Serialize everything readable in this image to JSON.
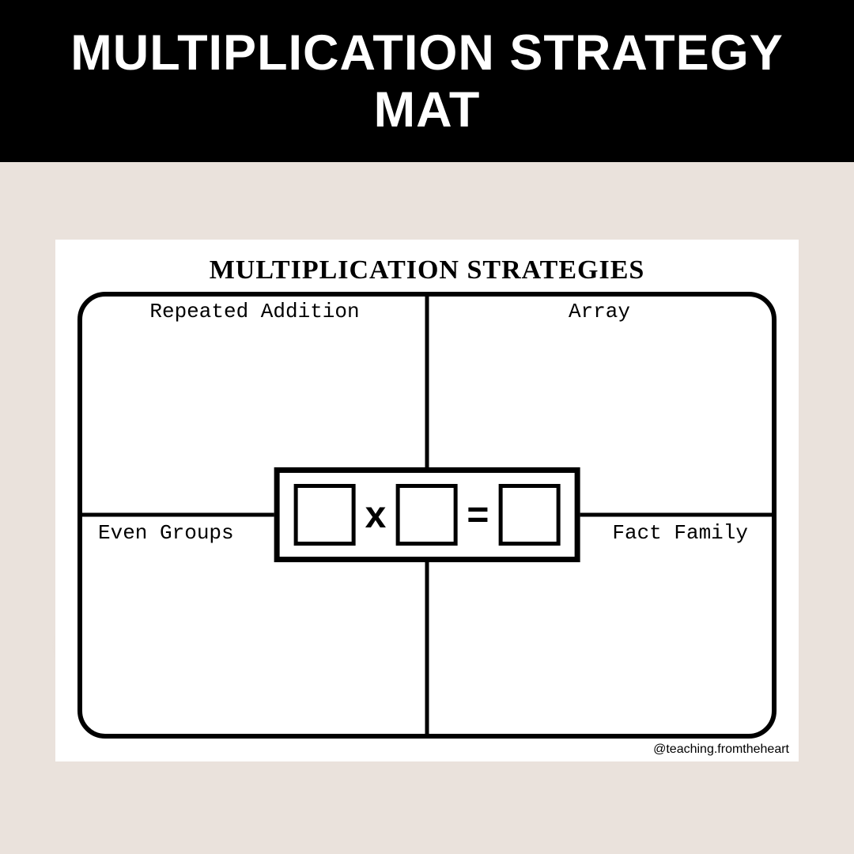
{
  "header": {
    "title": "MULTIPLICATION STRATEGY MAT",
    "background_color": "#000000",
    "text_color": "#ffffff",
    "title_fontsize": 63
  },
  "content_background_color": "#eae2dc",
  "worksheet": {
    "background_color": "#ffffff",
    "title": "MULTIPLICATION STRATEGIES",
    "title_fontsize": 34,
    "grid": {
      "border_color": "#000000",
      "border_width": 6,
      "border_radius": 35,
      "divider_width": 5,
      "quadrants": {
        "top_left": "Repeated Addition",
        "top_right": "Array",
        "bottom_left": "Even Groups",
        "bottom_right": "Fact Family"
      },
      "quadrant_label_fontsize": 26,
      "quadrant_label_font": "Courier New"
    },
    "equation": {
      "box_border_color": "#000000",
      "box_border_width": 7,
      "number_box_size": 78,
      "number_box_border_width": 5,
      "operator_times": "x",
      "operator_equals": "=",
      "operator_fontsize": 48
    },
    "watermark": "@teaching.fromtheheart"
  }
}
